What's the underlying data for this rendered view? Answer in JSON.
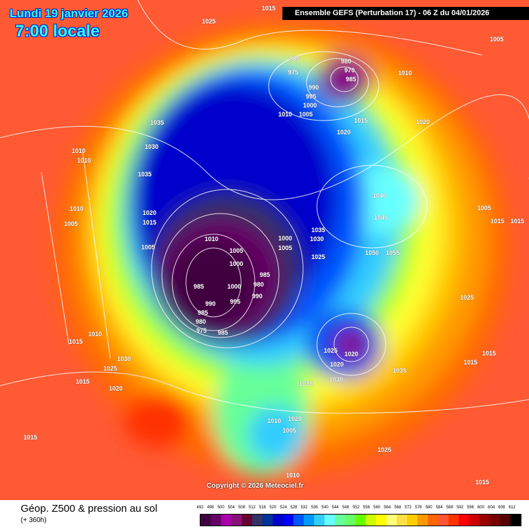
{
  "header": {
    "date": "Lundi 19 janvier 2026",
    "time": "7:00 locale",
    "run": "Ensemble GEFS  (Perturbation 17)  -  06 Z du 04/01/2026"
  },
  "map": {
    "copyright": "Copyright © 2026 Meteociel.fr",
    "pressure_labels": [
      "1015",
      "1025",
      "1035",
      "1030",
      "1010",
      "1010",
      "1035",
      "1010",
      "1005",
      "1020",
      "1015",
      "1005",
      "1010",
      "1005",
      "1000",
      "985",
      "990",
      "985",
      "980",
      "975",
      "985",
      "1000",
      "995",
      "990",
      "980",
      "985",
      "1000",
      "1005",
      "1035",
      "1030",
      "1025",
      "980",
      "975",
      "980",
      "970",
      "985",
      "990",
      "995",
      "1000",
      "1005",
      "1010",
      "1015",
      "1020",
      "1010",
      "1020",
      "1005",
      "1040",
      "1045",
      "1050",
      "1055",
      "1005",
      "1015",
      "1015",
      "1025",
      "1025",
      "1020",
      "1020",
      "1030",
      "1035",
      "1035",
      "1015",
      "1015",
      "1030",
      "1025",
      "1010",
      "1015",
      "1020",
      "1015",
      "1015",
      "1020",
      "1005",
      "1010",
      "1010",
      "1025",
      "1015"
    ]
  },
  "footer": {
    "title": "Géop. Z500 & pression au sol",
    "subtitle": "(+ 360h)",
    "scale_labels": [
      "492",
      "496",
      "500",
      "504",
      "508",
      "512",
      "516",
      "520",
      "524",
      "528",
      "532",
      "536",
      "540",
      "544",
      "548",
      "552",
      "556",
      "560",
      "564",
      "568",
      "572",
      "576",
      "580",
      "584",
      "588",
      "592",
      "596",
      "600",
      "604",
      "608",
      "612"
    ],
    "scale_colors": [
      "#400040",
      "#660066",
      "#aa00aa",
      "#881177",
      "#660033",
      "#333366",
      "#003399",
      "#0000cc",
      "#0000ff",
      "#0055ff",
      "#0099ff",
      "#33ccff",
      "#66ffff",
      "#66ff99",
      "#66ff66",
      "#66ff00",
      "#ccff00",
      "#ffff00",
      "#ffff77",
      "#ffe044",
      "#ffcc00",
      "#ff9900",
      "#ff6600",
      "#ff5533",
      "#ff3300",
      "#ff0000",
      "#cc0000",
      "#990000",
      "#770000",
      "#550000",
      "#000000"
    ]
  }
}
